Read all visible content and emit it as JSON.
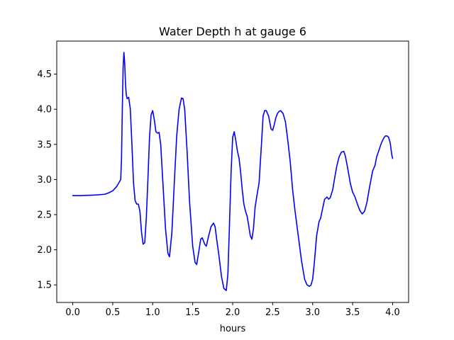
{
  "chart_data": {
    "type": "line",
    "title": "Water Depth h at gauge 6",
    "xlabel": "hours",
    "ylabel": "",
    "xlim": [
      -0.2,
      4.2
    ],
    "ylim": [
      1.25,
      4.97
    ],
    "xticks": [
      0.0,
      0.5,
      1.0,
      1.5,
      2.0,
      2.5,
      3.0,
      3.5,
      4.0
    ],
    "xtick_labels": [
      "0.0",
      "0.5",
      "1.0",
      "1.5",
      "2.0",
      "2.5",
      "3.0",
      "3.5",
      "4.0"
    ],
    "yticks": [
      1.5,
      2.0,
      2.5,
      3.0,
      3.5,
      4.0,
      4.5
    ],
    "ytick_labels": [
      "1.5",
      "2.0",
      "2.5",
      "3.0",
      "3.5",
      "4.0",
      "4.5"
    ],
    "grid": false,
    "series": [
      {
        "color": "#0000ff",
        "x": [
          0.0,
          0.1,
          0.2,
          0.3,
          0.4,
          0.45,
          0.5,
          0.55,
          0.58,
          0.6,
          0.61,
          0.62,
          0.63,
          0.64,
          0.65,
          0.66,
          0.67,
          0.68,
          0.7,
          0.72,
          0.74,
          0.76,
          0.78,
          0.8,
          0.82,
          0.84,
          0.86,
          0.88,
          0.9,
          0.92,
          0.94,
          0.96,
          0.98,
          1.0,
          1.02,
          1.04,
          1.06,
          1.08,
          1.1,
          1.13,
          1.16,
          1.19,
          1.21,
          1.24,
          1.27,
          1.3,
          1.33,
          1.36,
          1.38,
          1.4,
          1.43,
          1.46,
          1.5,
          1.53,
          1.55,
          1.58,
          1.6,
          1.62,
          1.65,
          1.67,
          1.7,
          1.73,
          1.76,
          1.78,
          1.8,
          1.83,
          1.86,
          1.89,
          1.92,
          1.94,
          1.96,
          1.98,
          2.0,
          2.02,
          2.04,
          2.06,
          2.08,
          2.1,
          2.12,
          2.14,
          2.16,
          2.18,
          2.2,
          2.22,
          2.24,
          2.26,
          2.28,
          2.3,
          2.33,
          2.36,
          2.38,
          2.4,
          2.42,
          2.45,
          2.48,
          2.5,
          2.52,
          2.54,
          2.56,
          2.58,
          2.6,
          2.63,
          2.66,
          2.69,
          2.72,
          2.75,
          2.78,
          2.82,
          2.86,
          2.9,
          2.93,
          2.96,
          2.98,
          3.0,
          3.02,
          3.05,
          3.08,
          3.1,
          3.12,
          3.15,
          3.18,
          3.2,
          3.22,
          3.25,
          3.28,
          3.3,
          3.33,
          3.36,
          3.39,
          3.41,
          3.44,
          3.47,
          3.5,
          3.53,
          3.56,
          3.59,
          3.62,
          3.65,
          3.68,
          3.71,
          3.75,
          3.78,
          3.8,
          3.83,
          3.86,
          3.89,
          3.91,
          3.93,
          3.95,
          3.97,
          3.99,
          4.0
        ],
        "y": [
          2.77,
          2.77,
          2.775,
          2.78,
          2.79,
          2.81,
          2.84,
          2.9,
          2.96,
          3.0,
          3.3,
          4.0,
          4.6,
          4.81,
          4.65,
          4.35,
          4.2,
          4.15,
          4.17,
          4.0,
          3.5,
          2.95,
          2.7,
          2.65,
          2.65,
          2.55,
          2.25,
          2.08,
          2.1,
          2.45,
          3.0,
          3.6,
          3.92,
          3.98,
          3.85,
          3.68,
          3.66,
          3.67,
          3.5,
          2.9,
          2.3,
          1.95,
          1.9,
          2.25,
          2.95,
          3.62,
          4.0,
          4.16,
          4.15,
          4.0,
          3.4,
          2.7,
          2.05,
          1.82,
          1.79,
          2.0,
          2.15,
          2.17,
          2.08,
          2.05,
          2.2,
          2.33,
          2.38,
          2.33,
          2.15,
          1.9,
          1.62,
          1.45,
          1.42,
          1.65,
          2.35,
          3.1,
          3.6,
          3.68,
          3.55,
          3.4,
          3.3,
          3.1,
          2.85,
          2.65,
          2.55,
          2.48,
          2.35,
          2.2,
          2.15,
          2.3,
          2.6,
          2.75,
          2.95,
          3.5,
          3.9,
          3.98,
          3.98,
          3.9,
          3.72,
          3.7,
          3.78,
          3.88,
          3.94,
          3.97,
          3.98,
          3.94,
          3.82,
          3.55,
          3.25,
          2.85,
          2.55,
          2.2,
          1.85,
          1.58,
          1.5,
          1.48,
          1.5,
          1.58,
          1.8,
          2.2,
          2.4,
          2.45,
          2.56,
          2.72,
          2.75,
          2.72,
          2.74,
          2.85,
          3.05,
          3.18,
          3.32,
          3.39,
          3.4,
          3.33,
          3.15,
          2.95,
          2.82,
          2.75,
          2.65,
          2.56,
          2.51,
          2.55,
          2.68,
          2.88,
          3.12,
          3.2,
          3.32,
          3.42,
          3.52,
          3.59,
          3.62,
          3.62,
          3.6,
          3.52,
          3.35,
          3.3
        ]
      }
    ]
  }
}
